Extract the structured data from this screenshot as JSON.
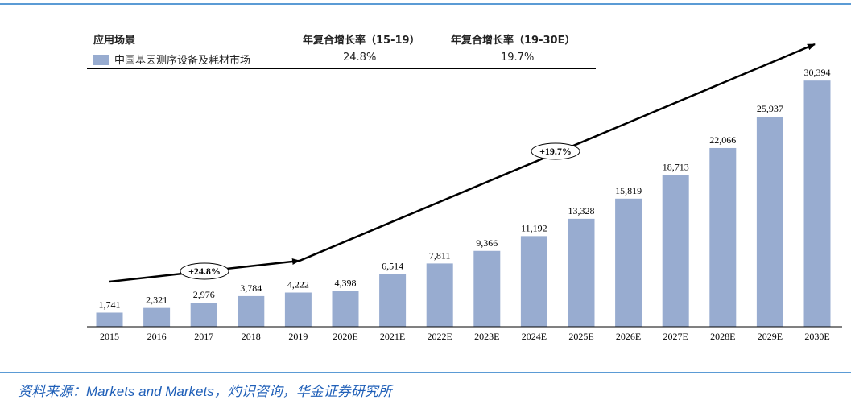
{
  "table": {
    "headers": [
      "应用场景",
      "年复合增长率（15-19）",
      "年复合增长率（19-30E）"
    ],
    "row": {
      "label": "中国基因测序设备及耗材市场",
      "cagr_15_19": "24.8%",
      "cagr_19_30": "19.7%"
    }
  },
  "chart_data": {
    "type": "bar",
    "categories": [
      "2015",
      "2016",
      "2017",
      "2018",
      "2019",
      "2020E",
      "2021E",
      "2022E",
      "2023E",
      "2024E",
      "2025E",
      "2026E",
      "2027E",
      "2028E",
      "2029E",
      "2030E"
    ],
    "series": [
      {
        "name": "中国基因测序设备及耗材市场",
        "values": [
          1741,
          2321,
          2976,
          3784,
          4222,
          4398,
          6514,
          7811,
          9366,
          11192,
          13328,
          15819,
          18713,
          22066,
          25937,
          30394
        ]
      }
    ],
    "data_labels": [
      "1,741",
      "2,321",
      "2,976",
      "3,784",
      "4,222",
      "4,398",
      "6,514",
      "7,811",
      "9,366",
      "11,192",
      "13,328",
      "15,819",
      "18,713",
      "22,066",
      "25,937",
      "30,394"
    ],
    "ylim": [
      0,
      32000
    ],
    "bar_color": "#98acd0",
    "annotations": [
      {
        "text": "+24.8%",
        "from": "2015",
        "to": "2019"
      },
      {
        "text": "+19.7%",
        "from": "2019",
        "to": "2030E"
      }
    ],
    "grid": false
  },
  "source": "资料来源：Markets and Markets，灼识咨询，华金证券研究所"
}
